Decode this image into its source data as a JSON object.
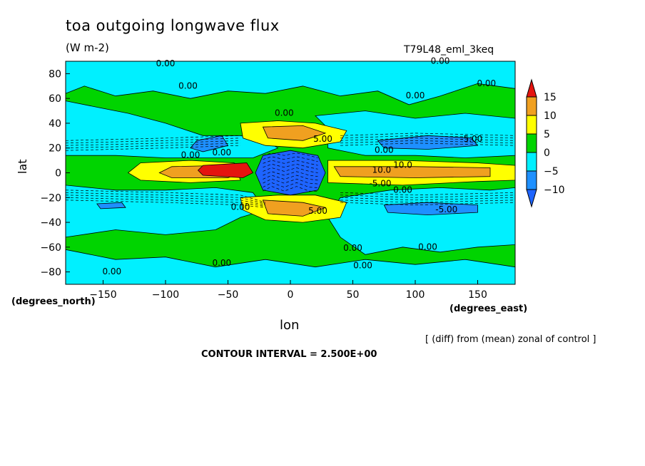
{
  "chart_data": {
    "type": "heatmap",
    "title": "toa outgoing longwave flux",
    "units": "(W m-2)",
    "run_label": "T79L48_eml_3keq",
    "xlabel": "lon",
    "ylabel": "lat",
    "x_units": "(degrees_east)",
    "y_units": "(degrees_north)",
    "xlim": [
      -180,
      180
    ],
    "ylim": [
      -90,
      90
    ],
    "x_ticks": [
      -150,
      -100,
      -50,
      0,
      50,
      100,
      150
    ],
    "y_ticks": [
      80,
      60,
      40,
      20,
      0,
      -20,
      -40,
      -60,
      -80
    ],
    "colorbar": {
      "levels": [
        15,
        10,
        5,
        0,
        -5,
        -10
      ],
      "colors": [
        "#e5140f",
        "#f0a020",
        "#ffff00",
        "#00d400",
        "#00f0ff",
        "#1e90ff",
        "#e5140f",
        "#1e64ff"
      ]
    },
    "contour_labels": [
      {
        "text": "0.00",
        "lon": -100,
        "lat": 86
      },
      {
        "text": "0.00",
        "lon": -82,
        "lat": 68
      },
      {
        "text": "0.00",
        "lon": -5,
        "lat": 46
      },
      {
        "text": "0.00",
        "lon": 100,
        "lat": 60
      },
      {
        "text": "0.00",
        "lon": 157,
        "lat": 70
      },
      {
        "text": "0.00",
        "lon": 120,
        "lat": 88
      },
      {
        "text": "-5.00",
        "lon": 145,
        "lat": 25
      },
      {
        "text": "5.00",
        "lon": 26,
        "lat": 25
      },
      {
        "text": "0.00",
        "lon": 75,
        "lat": 16
      },
      {
        "text": "10.0",
        "lon": 90,
        "lat": 4
      },
      {
        "text": "10.0",
        "lon": 73,
        "lat": 0
      },
      {
        "text": "-5.00",
        "lon": 72,
        "lat": -11
      },
      {
        "text": "0.00",
        "lon": 90,
        "lat": -16
      },
      {
        "text": "-5.00",
        "lon": 125,
        "lat": -32
      },
      {
        "text": "5.00",
        "lon": 22,
        "lat": -33
      },
      {
        "text": "0.00",
        "lon": -40,
        "lat": -30
      },
      {
        "text": "0.00",
        "lon": -80,
        "lat": 12
      },
      {
        "text": "0.00",
        "lon": -55,
        "lat": 14
      },
      {
        "text": "0.00",
        "lon": 50,
        "lat": -63
      },
      {
        "text": "0.00",
        "lon": 110,
        "lat": -62
      },
      {
        "text": "0.00",
        "lon": -55,
        "lat": -75
      },
      {
        "text": "0.00",
        "lon": 58,
        "lat": -77
      },
      {
        "text": "0.00",
        "lon": -143,
        "lat": -82
      }
    ]
  },
  "annotations": {
    "note": "[ (diff) from (mean) zonal of control ]",
    "contour_interval": "CONTOUR INTERVAL = 2.500E+00"
  }
}
